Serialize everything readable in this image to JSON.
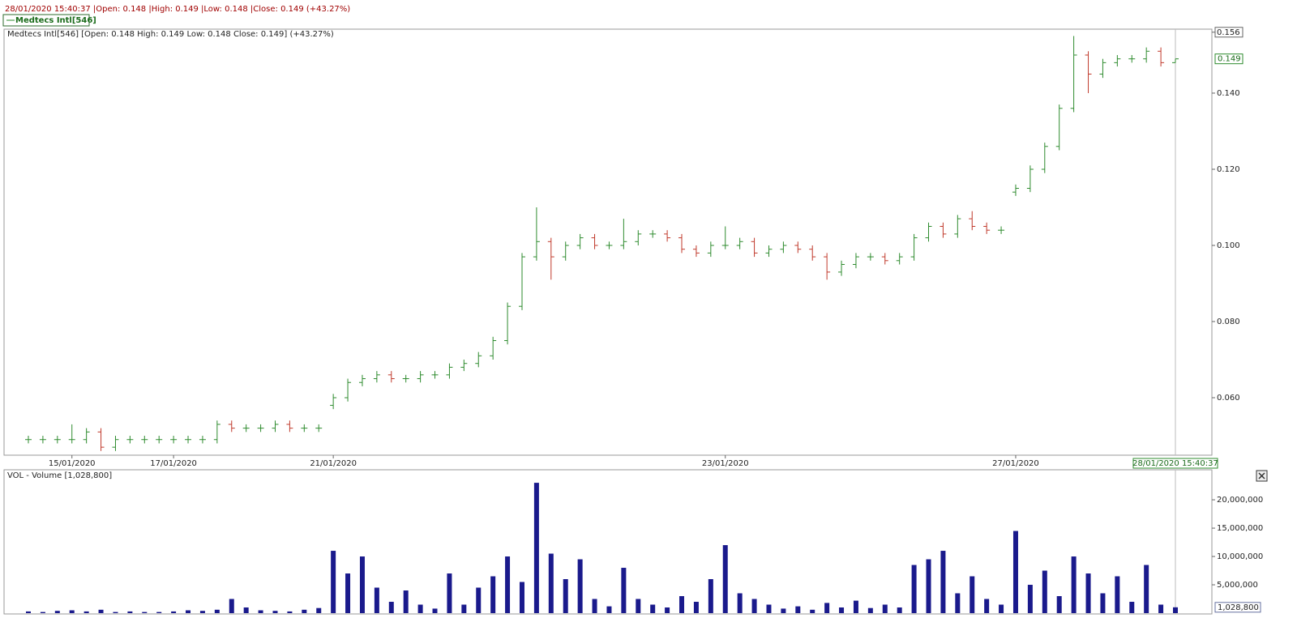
{
  "header": "28/01/2020 15:40:37 |Open: 0.148 |High: 0.149 |Low: 0.148 |Close: 0.149 (+43.27%)",
  "legend": "Medtecs Intl[546]",
  "chart_data": [
    {
      "type": "ohlc",
      "title": "Medtecs Intl[546] [Open: 0.148  High: 0.149  Low: 0.148  Close: 0.149] (+43.27%)",
      "categories": [
        null,
        null,
        null,
        "15/01/2020",
        null,
        null,
        null,
        null,
        null,
        null,
        "17/01/2020",
        null,
        null,
        null,
        null,
        null,
        null,
        null,
        null,
        null,
        null,
        "21/01/2020",
        null,
        null,
        null,
        null,
        null,
        null,
        null,
        null,
        null,
        null,
        null,
        null,
        null,
        null,
        null,
        null,
        null,
        null,
        null,
        null,
        null,
        null,
        null,
        null,
        null,
        null,
        "23/01/2020",
        null,
        null,
        null,
        null,
        null,
        null,
        null,
        null,
        null,
        null,
        null,
        null,
        null,
        null,
        null,
        null,
        null,
        null,
        null,
        "27/01/2020",
        null,
        null,
        null,
        null,
        null,
        null,
        null,
        null,
        null,
        null,
        "28/01/2020 15:40:37"
      ],
      "open": [
        0.049,
        0.049,
        0.049,
        0.049,
        0.049,
        0.051,
        0.047,
        0.049,
        0.049,
        0.049,
        0.049,
        0.049,
        0.049,
        0.049,
        0.053,
        0.052,
        0.052,
        0.052,
        0.053,
        0.052,
        0.052,
        0.058,
        0.06,
        0.064,
        0.065,
        0.066,
        0.065,
        0.065,
        0.066,
        0.066,
        0.068,
        0.069,
        0.071,
        0.075,
        0.084,
        0.097,
        0.101,
        0.097,
        0.1,
        0.102,
        0.1,
        0.1,
        0.101,
        0.103,
        0.103,
        0.102,
        0.099,
        0.098,
        0.1,
        0.1,
        0.101,
        0.098,
        0.099,
        0.1,
        0.099,
        0.097,
        0.093,
        0.095,
        0.097,
        0.097,
        0.096,
        0.097,
        0.102,
        0.105,
        0.103,
        0.107,
        0.105,
        0.104,
        0.114,
        0.115,
        0.12,
        0.126,
        0.136,
        0.15,
        0.145,
        0.148,
        0.149,
        0.149,
        0.151,
        0.148
      ],
      "high": [
        0.05,
        0.05,
        0.05,
        0.053,
        0.052,
        0.052,
        0.05,
        0.05,
        0.05,
        0.05,
        0.05,
        0.05,
        0.05,
        0.054,
        0.054,
        0.053,
        0.053,
        0.054,
        0.054,
        0.053,
        0.053,
        0.061,
        0.065,
        0.066,
        0.067,
        0.067,
        0.066,
        0.067,
        0.067,
        0.069,
        0.07,
        0.072,
        0.076,
        0.085,
        0.098,
        0.11,
        0.102,
        0.101,
        0.103,
        0.103,
        0.101,
        0.107,
        0.104,
        0.104,
        0.104,
        0.103,
        0.1,
        0.101,
        0.105,
        0.102,
        0.102,
        0.1,
        0.101,
        0.101,
        0.1,
        0.098,
        0.096,
        0.098,
        0.098,
        0.098,
        0.098,
        0.103,
        0.106,
        0.106,
        0.108,
        0.109,
        0.106,
        0.105,
        0.116,
        0.121,
        0.127,
        0.137,
        0.155,
        0.151,
        0.149,
        0.15,
        0.15,
        0.152,
        0.152,
        0.149
      ],
      "low": [
        0.048,
        0.048,
        0.048,
        0.048,
        0.048,
        0.046,
        0.046,
        0.048,
        0.048,
        0.048,
        0.048,
        0.048,
        0.048,
        0.048,
        0.051,
        0.051,
        0.051,
        0.051,
        0.051,
        0.051,
        0.051,
        0.057,
        0.059,
        0.063,
        0.064,
        0.064,
        0.064,
        0.064,
        0.065,
        0.065,
        0.067,
        0.068,
        0.07,
        0.074,
        0.083,
        0.096,
        0.091,
        0.096,
        0.099,
        0.099,
        0.099,
        0.099,
        0.1,
        0.102,
        0.101,
        0.098,
        0.097,
        0.097,
        0.099,
        0.099,
        0.097,
        0.097,
        0.098,
        0.098,
        0.096,
        0.091,
        0.092,
        0.094,
        0.096,
        0.095,
        0.095,
        0.096,
        0.101,
        0.102,
        0.102,
        0.104,
        0.103,
        0.103,
        0.113,
        0.114,
        0.119,
        0.125,
        0.135,
        0.14,
        0.144,
        0.147,
        0.148,
        0.148,
        0.147,
        0.148
      ],
      "close": [
        0.049,
        0.049,
        0.049,
        0.049,
        0.051,
        0.047,
        0.049,
        0.049,
        0.049,
        0.049,
        0.049,
        0.049,
        0.049,
        0.053,
        0.052,
        0.052,
        0.052,
        0.053,
        0.052,
        0.052,
        0.052,
        0.06,
        0.064,
        0.065,
        0.066,
        0.065,
        0.065,
        0.066,
        0.066,
        0.068,
        0.069,
        0.071,
        0.075,
        0.084,
        0.097,
        0.101,
        0.097,
        0.1,
        0.102,
        0.1,
        0.1,
        0.101,
        0.103,
        0.103,
        0.102,
        0.099,
        0.098,
        0.1,
        0.1,
        0.101,
        0.098,
        0.099,
        0.1,
        0.099,
        0.097,
        0.093,
        0.095,
        0.097,
        0.097,
        0.096,
        0.097,
        0.102,
        0.105,
        0.103,
        0.107,
        0.105,
        0.104,
        0.104,
        0.115,
        0.12,
        0.126,
        0.136,
        0.15,
        0.145,
        0.148,
        0.149,
        0.149,
        0.151,
        0.148,
        0.149
      ],
      "up_color": "#2e8b2e",
      "down_color": "#c0392b",
      "ylim": [
        0.0449,
        0.1568
      ],
      "yticks": [
        {
          "value": 0.06,
          "label": "0.060"
        },
        {
          "value": 0.08,
          "label": "0.080"
        },
        {
          "value": 0.1,
          "label": "0.100"
        },
        {
          "value": 0.12,
          "label": "0.120"
        },
        {
          "value": 0.14,
          "label": "0.140"
        },
        0.156
      ]
    },
    {
      "type": "bar",
      "title": "VOL - Volume [1,028,800]",
      "values": [
        300000,
        200000,
        400000,
        500000,
        300000,
        600000,
        200000,
        300000,
        200000,
        200000,
        300000,
        500000,
        400000,
        600000,
        2500000,
        1000000,
        500000,
        400000,
        300000,
        600000,
        900000,
        11000000,
        7000000,
        10000000,
        4500000,
        2000000,
        4000000,
        1500000,
        800000,
        7000000,
        1500000,
        4500000,
        6500000,
        10000000,
        5500000,
        23000000,
        10500000,
        6000000,
        9500000,
        2500000,
        1200000,
        8000000,
        2500000,
        1500000,
        1000000,
        3000000,
        2000000,
        6000000,
        12000000,
        3500000,
        2500000,
        1500000,
        800000,
        1200000,
        600000,
        1800000,
        1000000,
        2200000,
        900000,
        1500000,
        1000000,
        8500000,
        9500000,
        11000000,
        3500000,
        6500000,
        2500000,
        1500000,
        14500000,
        5000000,
        7500000,
        3000000,
        10000000,
        7000000,
        3500000,
        6500000,
        2000000,
        8500000,
        1500000,
        1028800
      ],
      "current_label": "1,028,800",
      "color": "#1a1a8c",
      "ylim": [
        0,
        25300000
      ],
      "yticks": [
        {
          "value": 5000000,
          "label": "5,000,000"
        },
        {
          "value": 10000000,
          "label": "10,000,000"
        },
        {
          "value": 15000000,
          "label": "15,000,000"
        },
        {
          "value": 20000000,
          "label": "20,000,000"
        }
      ]
    }
  ]
}
